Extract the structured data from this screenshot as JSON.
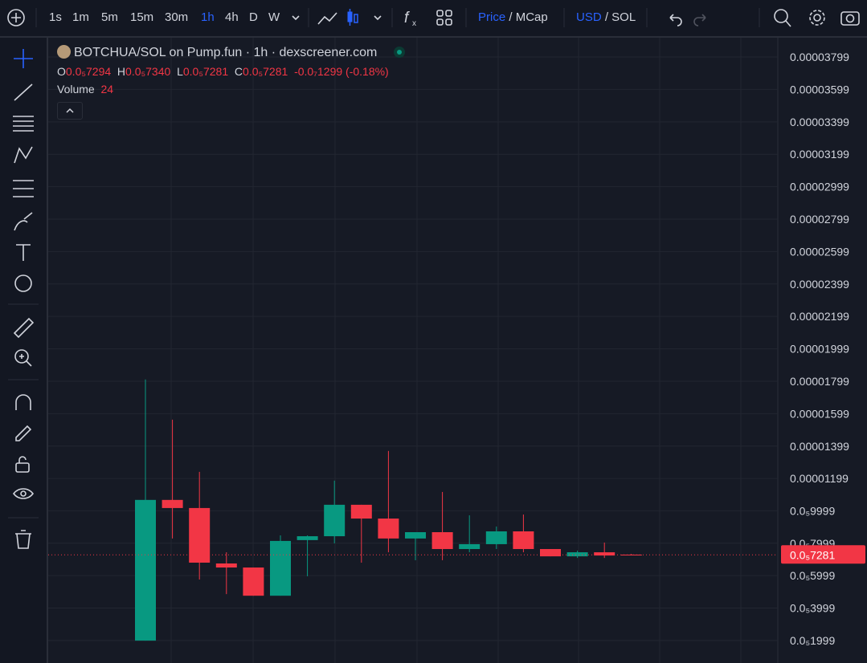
{
  "toolbar": {
    "intervals": [
      "1s",
      "1m",
      "5m",
      "15m",
      "30m",
      "1h",
      "4h",
      "D",
      "W"
    ],
    "price_toggle": {
      "active": "Price",
      "other": "/ MCap"
    },
    "currency_toggle": {
      "active": "USD",
      "other": "/ SOL"
    }
  },
  "legend": {
    "title": "BOTCHUA/SOL on Pump.fun · 1h · dexscreener.com",
    "ohlc": [
      {
        "key": "O",
        "value": "0.0₅7294"
      },
      {
        "key": "H",
        "value": "0.0₅7340"
      },
      {
        "key": "L",
        "value": "0.0₅7281"
      },
      {
        "key": "C",
        "value": "0.0₅7281"
      }
    ],
    "change": "-0.0₇1299 (-0.18%)",
    "volume_label": "Volume",
    "volume": 24
  },
  "chart_data": {
    "type": "candlestick",
    "up_color": "#089981",
    "down_color": "#f23645",
    "ylim": [
      6.1e-07,
      3.918e-05
    ],
    "yticks": [
      3.799e-05,
      3.599e-05,
      3.399e-05,
      3.199e-05,
      2.999e-05,
      2.799e-05,
      2.599e-05,
      2.399e-05,
      2.199e-05,
      1.999e-05,
      1.799e-05,
      1.599e-05,
      1.399e-05,
      1.199e-05,
      {
        "value": 9.999e-06,
        "label": "0.0₅9999"
      },
      {
        "value": 7.999e-06,
        "label": "0.0₅7999"
      },
      {
        "value": 5.999e-06,
        "label": "0.0₅5999"
      },
      {
        "value": 3.999e-06,
        "label": "0.0₅3999"
      },
      {
        "value": 1.999e-06,
        "label": "0.0₅1999"
      }
    ],
    "grid": true,
    "candles": [
      {
        "open": 1.99e-06,
        "high": 1.81e-05,
        "low": 1.99e-06,
        "close": 1.067e-05
      },
      {
        "open": 1.067e-05,
        "high": 1.562e-05,
        "low": 8.29e-06,
        "close": 1.017e-05
      },
      {
        "open": 1.017e-05,
        "high": 1.24e-05,
        "low": 5.76e-06,
        "close": 6.8e-06
      },
      {
        "open": 6.75e-06,
        "high": 7.44e-06,
        "low": 4.86e-06,
        "close": 6.5e-06
      },
      {
        "open": 6.5e-06,
        "high": 6.5e-06,
        "low": 4.76e-06,
        "close": 4.76e-06
      },
      {
        "open": 4.76e-06,
        "high": 8.48e-06,
        "low": 4.76e-06,
        "close": 8.14e-06
      },
      {
        "open": 8.19e-06,
        "high": 8.48e-06,
        "low": 5.96e-06,
        "close": 8.43e-06
      },
      {
        "open": 8.43e-06,
        "high": 1.186e-05,
        "low": 7.99e-06,
        "close": 1.037e-05
      },
      {
        "open": 1.037e-05,
        "high": 1.037e-05,
        "low": 6.8e-06,
        "close": 9.52e-06
      },
      {
        "open": 9.52e-06,
        "high": 1.369e-05,
        "low": 7.44e-06,
        "close": 8.29e-06
      },
      {
        "open": 8.29e-06,
        "high": 8.68e-06,
        "low": 6.95e-06,
        "close": 8.68e-06
      },
      {
        "open": 8.68e-06,
        "high": 1.116e-05,
        "low": 6.95e-06,
        "close": 7.64e-06
      },
      {
        "open": 7.64e-06,
        "high": 9.72e-06,
        "low": 7.44e-06,
        "close": 7.94e-06
      },
      {
        "open": 7.94e-06,
        "high": 9.03e-06,
        "low": 7.64e-06,
        "close": 8.73e-06
      },
      {
        "open": 8.73e-06,
        "high": 9.77e-06,
        "low": 7.44e-06,
        "close": 7.64e-06
      },
      {
        "open": 7.64e-06,
        "high": 7.64e-06,
        "low": 7.19e-06,
        "close": 7.19e-06
      },
      {
        "open": 7.19e-06,
        "high": 7.54e-06,
        "low": 7.09e-06,
        "close": 7.44e-06
      },
      {
        "open": 7.44e-06,
        "high": 8.04e-06,
        "low": 7.09e-06,
        "close": 7.24e-06
      },
      {
        "open": 7.294e-06,
        "high": 7.34e-06,
        "low": 7.281e-06,
        "close": 7.281e-06
      }
    ],
    "price_line": {
      "value": 7.281e-06,
      "label": "0.0₅7281"
    }
  }
}
